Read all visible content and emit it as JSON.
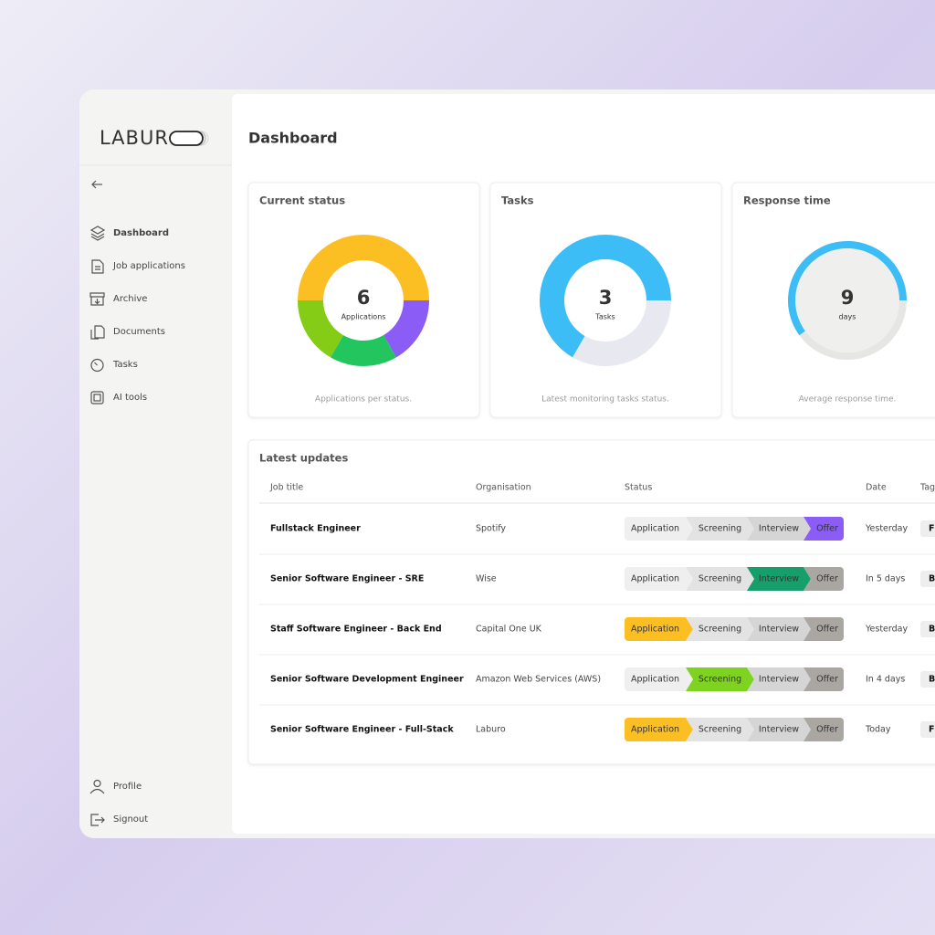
{
  "sidebar": {
    "brand": "LABUR",
    "nav": [
      "Dashboard",
      "Job applications",
      "Archive",
      "Documents",
      "Tasks",
      "AI tools"
    ],
    "footer_nav": [
      "Profile",
      "Signout"
    ]
  },
  "header": {
    "title": "Dashboard"
  },
  "cards": [
    {
      "title": "Current status",
      "value": 6,
      "unit": "Applications",
      "caption": "Applications per status.",
      "segments": [
        {
          "value": 3,
          "color": "#fbbf24"
        },
        {
          "value": 1,
          "color": "#8b5cf6"
        },
        {
          "value": 1,
          "color": "#22c55e"
        },
        {
          "value": 1,
          "color": "#84cc16"
        }
      ]
    },
    {
      "title": "Tasks",
      "value": 3,
      "unit": "Tasks",
      "caption": "Latest monitoring tasks status.",
      "segments": [
        {
          "value": 1,
          "color": "#e8e8f0"
        },
        {
          "value": 2,
          "color": "#3dbdf5"
        }
      ]
    },
    {
      "title": "Response time",
      "value": 9,
      "unit": "days",
      "caption": "Average response time.",
      "segments": [
        {
          "value": 40,
          "color": "#e6e6e4"
        },
        {
          "value": 60,
          "color": "#3dbdf5"
        }
      ]
    }
  ],
  "updates": {
    "title": "Latest updates",
    "columns": [
      "Job title",
      "Organisation",
      "Status",
      "Date",
      "Tag"
    ],
    "stages": [
      "Application",
      "Screening",
      "Interview",
      "Offer"
    ],
    "rows": [
      {
        "job": "Fullstack Engineer",
        "org": "Spotify",
        "stage": 3,
        "color": "#8b5cf6",
        "date": "Yesterday",
        "tag": "F"
      },
      {
        "job": "Senior Software Engineer - SRE",
        "org": "Wise",
        "stage": 2,
        "color": "#169e6b",
        "date": "In 5 days",
        "tag": "B"
      },
      {
        "job": "Staff Software Engineer - Back End",
        "org": "Capital One UK",
        "stage": 0,
        "color": "#fbbf24",
        "date": "Yesterday",
        "tag": "B"
      },
      {
        "job": "Senior Software Development Engineer",
        "org": "Amazon Web Services (AWS)",
        "stage": 1,
        "color": "#7ed321",
        "date": "In 4 days",
        "tag": "B"
      },
      {
        "job": "Senior Software Engineer - Full-Stack",
        "org": "Laburo",
        "stage": 0,
        "color": "#fbbf24",
        "date": "Today",
        "tag": "F"
      }
    ]
  }
}
